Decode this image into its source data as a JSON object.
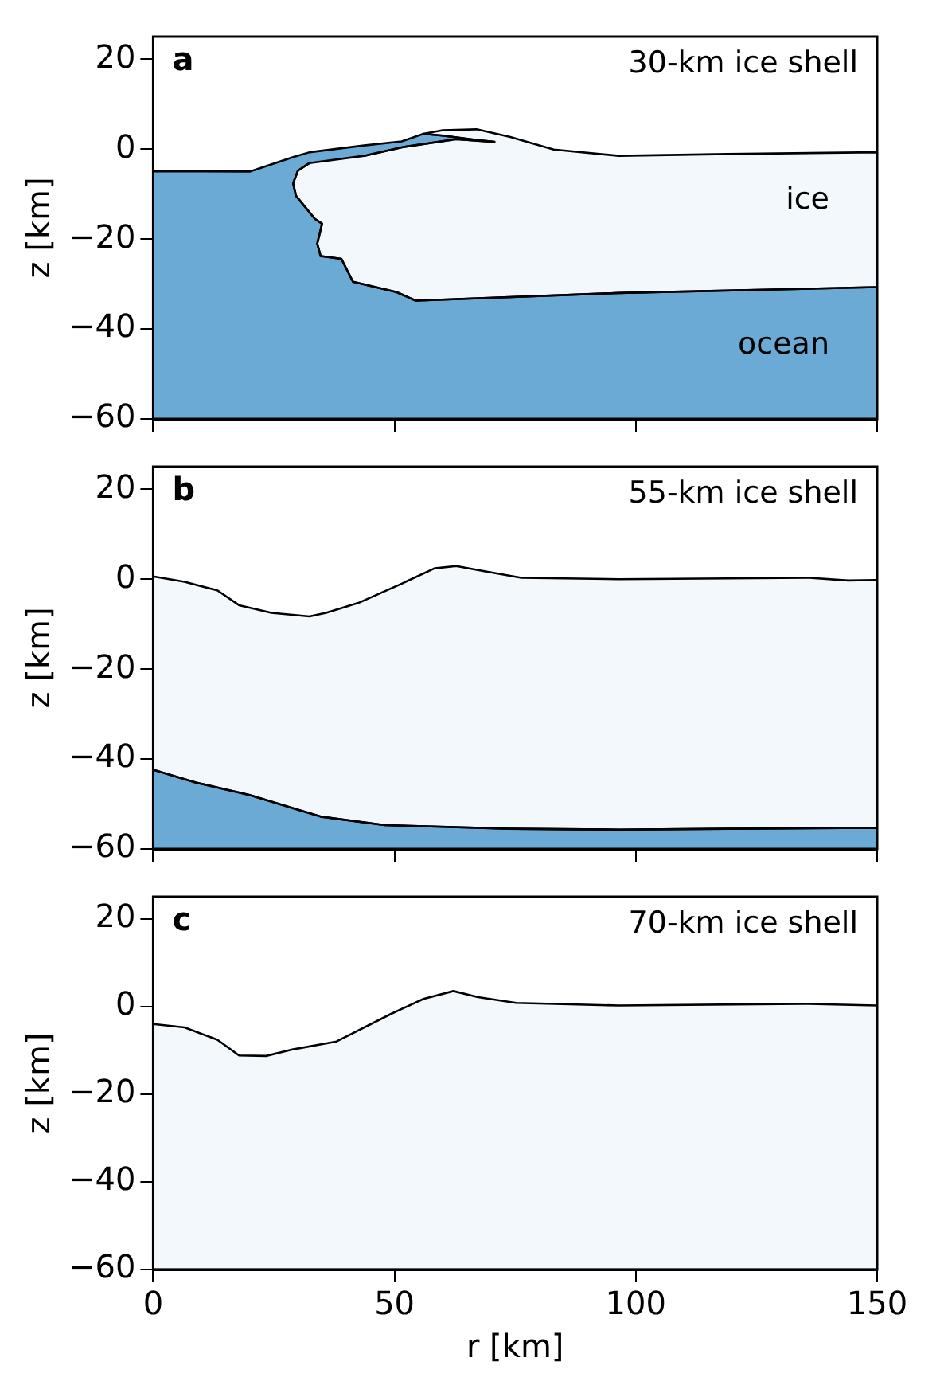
{
  "chart_data": [
    {
      "type": "area",
      "ylabel": "z [km]",
      "xlim": [
        0,
        150
      ],
      "ylim": [
        -60,
        25
      ],
      "xticks": [
        0,
        50,
        100,
        150
      ],
      "yticks": [
        -60,
        -40,
        -20,
        0,
        20
      ],
      "tick_labels": "y",
      "grid": false,
      "legend": false,
      "annotations": [
        "a",
        "30-km ice shell",
        "ice",
        "ocean"
      ],
      "series": [
        {
          "color": "#6aaad4",
          "x": [
            0,
            0,
            20,
            29,
            32.4,
            43.7,
            51.5,
            56,
            60,
            67,
            70.7,
            62.8,
            51.5,
            43.7,
            32.4,
            30,
            29,
            29.6,
            33.5,
            35,
            34,
            34.7,
            39,
            41.4,
            50.4,
            54.4,
            96.5,
            150,
            150
          ],
          "values": [
            -60,
            -4.9,
            -5,
            -1.8,
            -0.7,
            0.8,
            1.7,
            3.4,
            3,
            2,
            1.6,
            2.2,
            0.4,
            -1.5,
            -3.1,
            -4.8,
            -7.6,
            -10.4,
            -15.5,
            -16.6,
            -21,
            -23.8,
            -24.4,
            -29.5,
            -31.8,
            -33.7,
            -32,
            -30.7,
            -60
          ]
        },
        {
          "color": "#f2f8fb",
          "x": [
            32.4,
            30,
            29,
            29.6,
            33.5,
            35,
            34,
            34.7,
            39,
            41.4,
            50.4,
            54.4,
            96.5,
            150,
            150,
            119,
            96.5,
            83,
            74,
            67,
            60,
            56,
            60,
            67,
            70.7,
            62.8,
            51.5,
            43.7
          ],
          "values": [
            -3.1,
            -4.8,
            -7.6,
            -10.4,
            -15.5,
            -16.6,
            -21,
            -23.8,
            -24.4,
            -29.5,
            -31.8,
            -33.7,
            -32,
            -30.7,
            -0.7,
            -1.1,
            -1.5,
            -0.1,
            2.7,
            4.4,
            4.2,
            3.4,
            3,
            2,
            1.6,
            2.2,
            0.4,
            -1.5
          ]
        }
      ]
    },
    {
      "type": "area",
      "ylabel": "z [km]",
      "xlim": [
        0,
        150
      ],
      "ylim": [
        -60,
        25
      ],
      "xticks": [
        0,
        50,
        100,
        150
      ],
      "yticks": [
        -60,
        -40,
        -20,
        0,
        20
      ],
      "tick_labels": "y",
      "grid": false,
      "legend": false,
      "annotations": [
        "b",
        "55-km ice shell"
      ],
      "series": [
        {
          "color": "#6aaad4",
          "x": [
            0,
            0,
            8.8,
            20,
            34.7,
            48,
            74,
            96.5,
            119,
            150,
            150
          ],
          "values": [
            -60,
            -42.4,
            -45.2,
            -48,
            -52.8,
            -54.7,
            -55.5,
            -55.7,
            -55.5,
            -55.3,
            -60
          ]
        },
        {
          "color": "#f2f8fb",
          "x": [
            0,
            6.5,
            13.3,
            17.8,
            24.5,
            32.4,
            35.8,
            42.5,
            51.5,
            58.3,
            62.8,
            68.4,
            76.3,
            96.5,
            136,
            144,
            150,
            150,
            119,
            96.5,
            74,
            48,
            34.7,
            20,
            8.8,
            0
          ],
          "values": [
            0.6,
            -0.6,
            -2.5,
            -5.8,
            -7.5,
            -8.3,
            -7.5,
            -5.3,
            -1,
            2.4,
            2.9,
            1.8,
            0.3,
            0,
            0.3,
            -0.3,
            -0.2,
            -55.3,
            -55.5,
            -55.7,
            -55.5,
            -54.7,
            -52.8,
            -48,
            -45.2,
            -42.4
          ]
        }
      ]
    },
    {
      "type": "area",
      "xlabel": "r [km]",
      "ylabel": "z [km]",
      "xlim": [
        0,
        150
      ],
      "ylim": [
        -60,
        25
      ],
      "xticks": [
        0,
        50,
        100,
        150
      ],
      "yticks": [
        -60,
        -40,
        -20,
        0,
        20
      ],
      "grid": false,
      "legend": false,
      "annotations": [
        "c",
        "70-km ice shell"
      ],
      "series": [
        {
          "color": "#f2f8fb",
          "x": [
            0,
            6.5,
            13.3,
            17.8,
            23.4,
            29,
            38,
            49.3,
            56,
            62.2,
            67.3,
            75.2,
            96.5,
            134.8,
            150,
            150,
            0
          ],
          "values": [
            -4,
            -4.8,
            -7.6,
            -11.2,
            -11.3,
            -9.8,
            -8,
            -1.7,
            1.7,
            3.5,
            2.1,
            0.8,
            0.2,
            0.6,
            0.2,
            -60,
            -60
          ]
        }
      ]
    }
  ]
}
